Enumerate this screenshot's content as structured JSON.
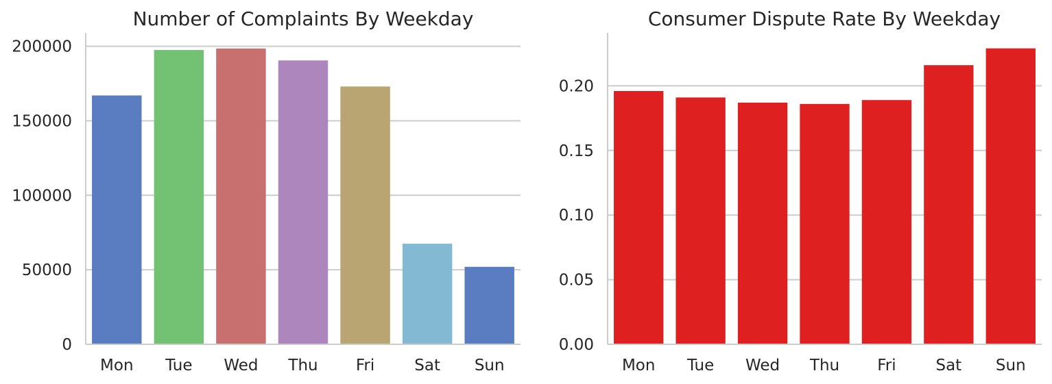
{
  "chart_data": [
    {
      "type": "bar",
      "title": "Number of Complaints By Weekday",
      "xlabel": "",
      "ylabel": "",
      "categories": [
        "Mon",
        "Tue",
        "Wed",
        "Thu",
        "Fri",
        "Sat",
        "Sun"
      ],
      "values": [
        167000,
        197500,
        198500,
        190500,
        173000,
        67500,
        52000
      ],
      "colors": [
        "#5a7dc2",
        "#73c273",
        "#c87070",
        "#ac86bd",
        "#b9a572",
        "#84b9d3",
        "#5a7dc2"
      ],
      "ylim": [
        0,
        209000
      ],
      "yticks": [
        0,
        50000,
        100000,
        150000,
        200000
      ],
      "ytick_labels": [
        "0",
        "50000",
        "100000",
        "150000",
        "200000"
      ],
      "grid": "horizontal"
    },
    {
      "type": "bar",
      "title": "Consumer Dispute Rate By Weekday",
      "xlabel": "",
      "ylabel": "",
      "categories": [
        "Mon",
        "Tue",
        "Wed",
        "Thu",
        "Fri",
        "Sat",
        "Sun"
      ],
      "values": [
        0.196,
        0.191,
        0.187,
        0.186,
        0.189,
        0.216,
        0.229
      ],
      "colors": [
        "#df2020",
        "#df2020",
        "#df2020",
        "#df2020",
        "#df2020",
        "#df2020",
        "#df2020"
      ],
      "ylim": [
        0,
        0.241
      ],
      "yticks": [
        0,
        0.05,
        0.1,
        0.15,
        0.2
      ],
      "ytick_labels": [
        "0.00",
        "0.05",
        "0.10",
        "0.15",
        "0.20"
      ],
      "grid": "horizontal"
    }
  ]
}
